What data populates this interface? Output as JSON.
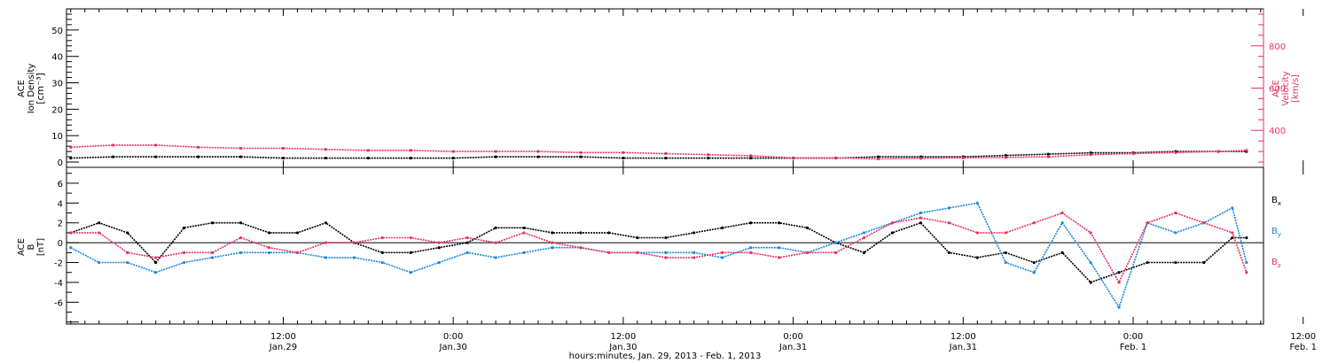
{
  "colors": {
    "black": "#000000",
    "pink": "#e8315f",
    "blue": "#1a86e0"
  },
  "xaxis": {
    "title": "hours:minutes, Jan. 29, 2013 - Feb.  1, 2013",
    "range_hours": [
      -3.3,
      81.2
    ],
    "ticks": [
      {
        "hours": 12,
        "time": "12:00",
        "date": "Jan.29"
      },
      {
        "hours": 24,
        "time": "0:00",
        "date": "Jan.30"
      },
      {
        "hours": 36,
        "time": "12:00",
        "date": "Jan.30"
      },
      {
        "hours": 48,
        "time": "0:00",
        "date": "Jan.31"
      },
      {
        "hours": 60,
        "time": "12:00",
        "date": "Jan.31"
      },
      {
        "hours": 72,
        "time": "0:00",
        "date": "Feb. 1"
      },
      {
        "hours": 84,
        "time": "12:00",
        "date": "Feb. 1"
      }
    ]
  },
  "top_panel": {
    "left_axis": {
      "label_lines": [
        "ACE",
        "Ion Density",
        "[cm⁻³]"
      ],
      "ylim": [
        -2,
        58
      ],
      "ticks": [
        0,
        10,
        20,
        30,
        40,
        50
      ]
    },
    "right_axis": {
      "label_lines": [
        "ACE",
        "Velocity",
        "[km/s]"
      ],
      "ylim": [
        225,
        975
      ],
      "ticks": [
        400,
        600,
        800
      ]
    }
  },
  "bottom_panel": {
    "axis": {
      "label_lines": [
        "ACE",
        "B",
        "[nT]"
      ],
      "ylim": [
        -8.2,
        7.6
      ],
      "ticks": [
        -6,
        -4,
        -2,
        0,
        2,
        4,
        6
      ]
    },
    "legend": [
      {
        "main": "B",
        "sub": "x",
        "color": "#000000"
      },
      {
        "main": "B",
        "sub": "y",
        "color": "#1a86e0"
      },
      {
        "main": "B",
        "sub": "z",
        "color": "#e8315f"
      }
    ]
  },
  "chart_data": [
    {
      "type": "scatter",
      "title": "",
      "xlabel": "hours:minutes, Jan. 29, 2013 - Feb.  1, 2013",
      "ylabel": "ACE Ion Density [cm⁻³] / ACE Velocity [km/s]",
      "series": [
        {
          "name": "Ion Density",
          "axis": "left",
          "color": "#000000",
          "x": [
            -3,
            0,
            3,
            6,
            9,
            12,
            15,
            18,
            21,
            24,
            27,
            30,
            33,
            36,
            39,
            42,
            45,
            48,
            51,
            54,
            57,
            60,
            63,
            66,
            69,
            72,
            75,
            78,
            80
          ],
          "y": [
            1.5,
            2,
            2,
            2,
            2,
            1.5,
            1.5,
            1.5,
            1.5,
            1.5,
            2,
            2,
            2,
            1.5,
            1.5,
            1.5,
            1.5,
            1.5,
            1.5,
            2,
            2,
            2,
            2.5,
            3,
            3.5,
            3.5,
            4,
            4,
            4
          ]
        },
        {
          "name": "Velocity",
          "axis": "right",
          "color": "#e8315f",
          "x": [
            -3,
            0,
            3,
            6,
            9,
            12,
            15,
            18,
            21,
            24,
            27,
            30,
            33,
            36,
            39,
            42,
            45,
            48,
            51,
            54,
            57,
            60,
            63,
            66,
            69,
            72,
            75,
            78,
            80
          ],
          "y": [
            320,
            330,
            330,
            320,
            315,
            315,
            310,
            305,
            305,
            300,
            300,
            300,
            295,
            295,
            290,
            285,
            280,
            270,
            270,
            265,
            268,
            270,
            272,
            275,
            285,
            290,
            295,
            300,
            305
          ]
        }
      ]
    },
    {
      "type": "scatter",
      "title": "",
      "xlabel": "hours:minutes, Jan. 29, 2013 - Feb.  1, 2013",
      "ylabel": "ACE B [nT]",
      "series": [
        {
          "name": "Bx",
          "color": "#000000",
          "x": [
            -3,
            -1,
            1,
            3,
            5,
            7,
            9,
            11,
            13,
            15,
            17,
            19,
            21,
            23,
            25,
            27,
            29,
            31,
            33,
            35,
            37,
            39,
            41,
            43,
            45,
            47,
            49,
            51,
            53,
            55,
            57,
            59,
            61,
            63,
            65,
            67,
            69,
            71,
            73,
            75,
            77,
            79,
            80
          ],
          "y": [
            1,
            2,
            1,
            -2,
            1.5,
            2,
            2,
            1,
            1,
            2,
            0,
            -1,
            -1,
            -0.5,
            0,
            1.5,
            1.5,
            1,
            1,
            1,
            0.5,
            0.5,
            1,
            1.5,
            2,
            2,
            1.5,
            0,
            -1,
            1,
            2,
            -1,
            -1.5,
            -1,
            -2,
            -1,
            -4,
            -3,
            -2,
            -2,
            -2,
            0.5,
            0.5
          ]
        },
        {
          "name": "By",
          "color": "#1a86e0",
          "x": [
            -3,
            -1,
            1,
            3,
            5,
            7,
            9,
            11,
            13,
            15,
            17,
            19,
            21,
            23,
            25,
            27,
            29,
            31,
            33,
            35,
            37,
            39,
            41,
            43,
            45,
            47,
            49,
            51,
            53,
            55,
            57,
            59,
            61,
            63,
            65,
            67,
            69,
            71,
            73,
            75,
            77,
            79,
            80
          ],
          "y": [
            -0.5,
            -2,
            -2,
            -3,
            -2,
            -1.5,
            -1,
            -1,
            -1,
            -1.5,
            -1.5,
            -2,
            -3,
            -2,
            -1,
            -1.5,
            -1,
            -0.5,
            -0.5,
            -1,
            -1,
            -1,
            -1,
            -1.5,
            -0.5,
            -0.5,
            -1,
            0,
            1,
            2,
            3,
            3.5,
            4,
            -2,
            -3,
            2,
            -2,
            -6.5,
            2,
            1,
            2,
            3.5,
            -2
          ]
        },
        {
          "name": "Bz",
          "color": "#e8315f",
          "x": [
            -3,
            -1,
            1,
            3,
            5,
            7,
            9,
            11,
            13,
            15,
            17,
            19,
            21,
            23,
            25,
            27,
            29,
            31,
            33,
            35,
            37,
            39,
            41,
            43,
            45,
            47,
            49,
            51,
            53,
            55,
            57,
            59,
            61,
            63,
            65,
            67,
            69,
            71,
            73,
            75,
            77,
            79,
            80
          ],
          "y": [
            1,
            1,
            -1,
            -1.5,
            -1,
            -1,
            0.5,
            -0.5,
            -1,
            0,
            0,
            0.5,
            0.5,
            0,
            0.5,
            0,
            1,
            0,
            -0.5,
            -1,
            -1,
            -1.5,
            -1.5,
            -1,
            -1,
            -1.5,
            -1,
            -1,
            0.5,
            2,
            2.5,
            2,
            1,
            1,
            2,
            3,
            1,
            -4,
            2,
            3,
            2,
            1,
            -3
          ]
        }
      ]
    }
  ]
}
